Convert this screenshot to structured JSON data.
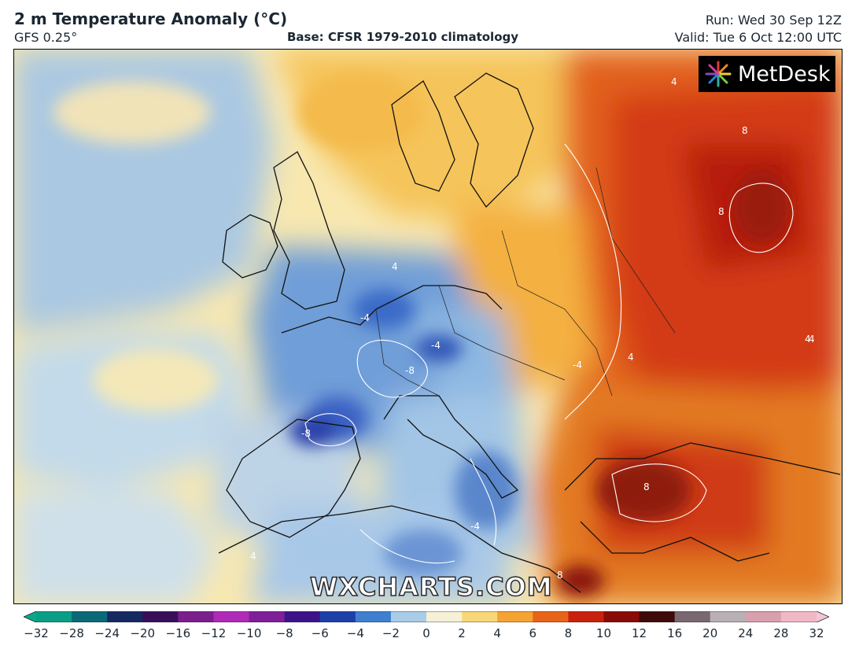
{
  "header": {
    "title": "2 m Temperature Anomaly (°C)",
    "model": "GFS 0.25°",
    "base": "Base: CFSR 1979-2010 climatology",
    "run": "Run: Wed 30 Sep 12Z",
    "valid": "Valid: Tue 6 Oct 12:00 UTC"
  },
  "logo": {
    "text": "MetDesk",
    "icon": "metdesk-starburst-logo"
  },
  "watermark": "WXCHARTS.COM",
  "colorbar": {
    "ticks": [
      "−32",
      "−28",
      "−24",
      "−20",
      "−16",
      "−12",
      "−10",
      "−8",
      "−6",
      "−4",
      "−2",
      "0",
      "2",
      "4",
      "6",
      "8",
      "10",
      "12",
      "16",
      "20",
      "24",
      "28",
      "32"
    ],
    "colors": [
      "#0a9e86",
      "#0a6a78",
      "#152a60",
      "#3a0f5a",
      "#7a1f8c",
      "#b02ab8",
      "#7f1f99",
      "#3c148a",
      "#1d3fa8",
      "#3f7fd0",
      "#a9cce8",
      "#f6f0d6",
      "#f8d77a",
      "#f5a332",
      "#e8641a",
      "#c8220e",
      "#8a0a06",
      "#3e0a0a",
      "#7a6870",
      "#b8b0b4",
      "#d8a0ae",
      "#f0b8c6"
    ],
    "left_arrow_color": "#0aa88a",
    "right_arrow_color": "#f3c6d6"
  },
  "map": {
    "contour_labels": [
      "4",
      "-4",
      "8",
      "-8",
      "4",
      "-4",
      "8",
      "4",
      "-4",
      "4",
      "8",
      "-4",
      "4",
      "8",
      "-8",
      "4"
    ]
  }
}
